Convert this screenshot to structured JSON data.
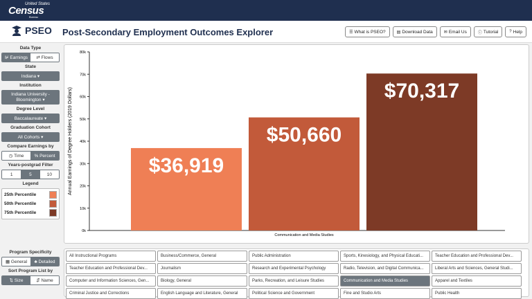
{
  "census": {
    "line1": "United States",
    "line2": "Census",
    "line3": "Bureau"
  },
  "app": {
    "name": "PSEO",
    "title": "Post-Secondary Employment Outcomes Explorer"
  },
  "toolbar": [
    {
      "label": "What is PSEO?",
      "icon": "list-icon"
    },
    {
      "label": "Download Data",
      "icon": "download-icon"
    },
    {
      "label": "Email Us",
      "icon": "envelope-icon"
    },
    {
      "label": "Tutorial",
      "icon": "info-icon"
    },
    {
      "label": "Help",
      "icon": "help-icon"
    }
  ],
  "sidebar": {
    "data_type_label": "Data Type",
    "data_type_opts": [
      "Earnings",
      "Flows"
    ],
    "state_label": "State",
    "state_value": "Indiana ▾",
    "institution_label": "Institution",
    "institution_value": "Indiana University - Bloomington ▾",
    "degree_label": "Degree Level",
    "degree_value": "Baccalaureate ▾",
    "cohort_label": "Graduation Cohort",
    "cohort_value": "All Cohorts ▾",
    "compare_label": "Compare Earnings by",
    "compare_opts": [
      "Time",
      "Percent"
    ],
    "years_label": "Years-postgrad Filter",
    "years_opts": [
      "1",
      "5",
      "10"
    ],
    "legend_label": "Legend",
    "legend_items": [
      "25th Percentile",
      "50th Percentile",
      "75th Percentile"
    ],
    "specificity_label": "Program Specificity",
    "specificity_opts": [
      "General",
      "Detailed"
    ],
    "sort_label": "Sort Program List by",
    "sort_opts": [
      "Size",
      "Name"
    ]
  },
  "colors": {
    "p25": "#ef7f55",
    "p50": "#c25a3a",
    "p75": "#7d3a26",
    "nav": "#1f2f4f",
    "selected": "#6c757d"
  },
  "chart_data": {
    "type": "bar",
    "categories": [
      "Communication and Media Studies"
    ],
    "series": [
      {
        "name": "25th Percentile",
        "values": [
          36919
        ],
        "label": "$36,919"
      },
      {
        "name": "50th Percentile",
        "values": [
          50660
        ],
        "label": "$50,660"
      },
      {
        "name": "75th Percentile",
        "values": [
          70317
        ],
        "label": "$70,317"
      }
    ],
    "ylabel": "Annual Earnings of Degree Holders (2019 Dollars)",
    "yticks": [
      "0k",
      "10k",
      "20k",
      "30k",
      "40k",
      "50k",
      "60k",
      "70k",
      "80k"
    ],
    "ylim": [
      0,
      80000
    ],
    "grid": false
  },
  "programs": [
    "All Instructional Programs",
    "Business/Commerce, General",
    "Public Administration",
    "Sports, Kinesiology, and Physical Educati...",
    "Teacher Education and Professional Dev...",
    "Teacher Education and Professional Dev...",
    "Journalism",
    "Research and Experimental Psychology",
    "Radio, Television, and Digital Communica...",
    "Liberal Arts and Sciences, General Studi...",
    "Computer and Information Sciences, Gen...",
    "Biology, General",
    "Parks, Recreation, and Leisure Studies",
    "Communication and Media Studies",
    "Apparel and Textiles",
    "Criminal Justice and Corrections",
    "English Language and Literature, General",
    "Political Science and Government",
    "Fine and Studio Arts",
    "Public Health"
  ],
  "selected_program": "Communication and Media Studies"
}
